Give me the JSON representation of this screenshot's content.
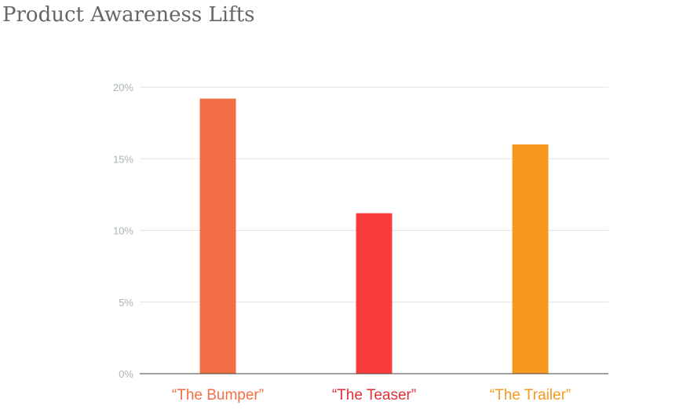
{
  "chart_data": {
    "type": "bar",
    "title": "Product Awareness Lifts",
    "categories": [
      "“The Bumper”",
      "“The Teaser”",
      "“The Trailer”"
    ],
    "values": [
      19.2,
      11.2,
      16.0
    ],
    "colors": [
      "#f26e45",
      "#fb3b3c",
      "#f7981f"
    ],
    "label_colors": [
      "#f26e45",
      "#e02e36",
      "#f7981f"
    ],
    "yticks": [
      "0%",
      "5%",
      "10%",
      "15%",
      "20%"
    ],
    "ytick_values": [
      0,
      5,
      10,
      15,
      20
    ],
    "ylim": [
      0,
      20
    ],
    "xlabel": "",
    "ylabel": "",
    "grid": true,
    "legend": "none"
  }
}
